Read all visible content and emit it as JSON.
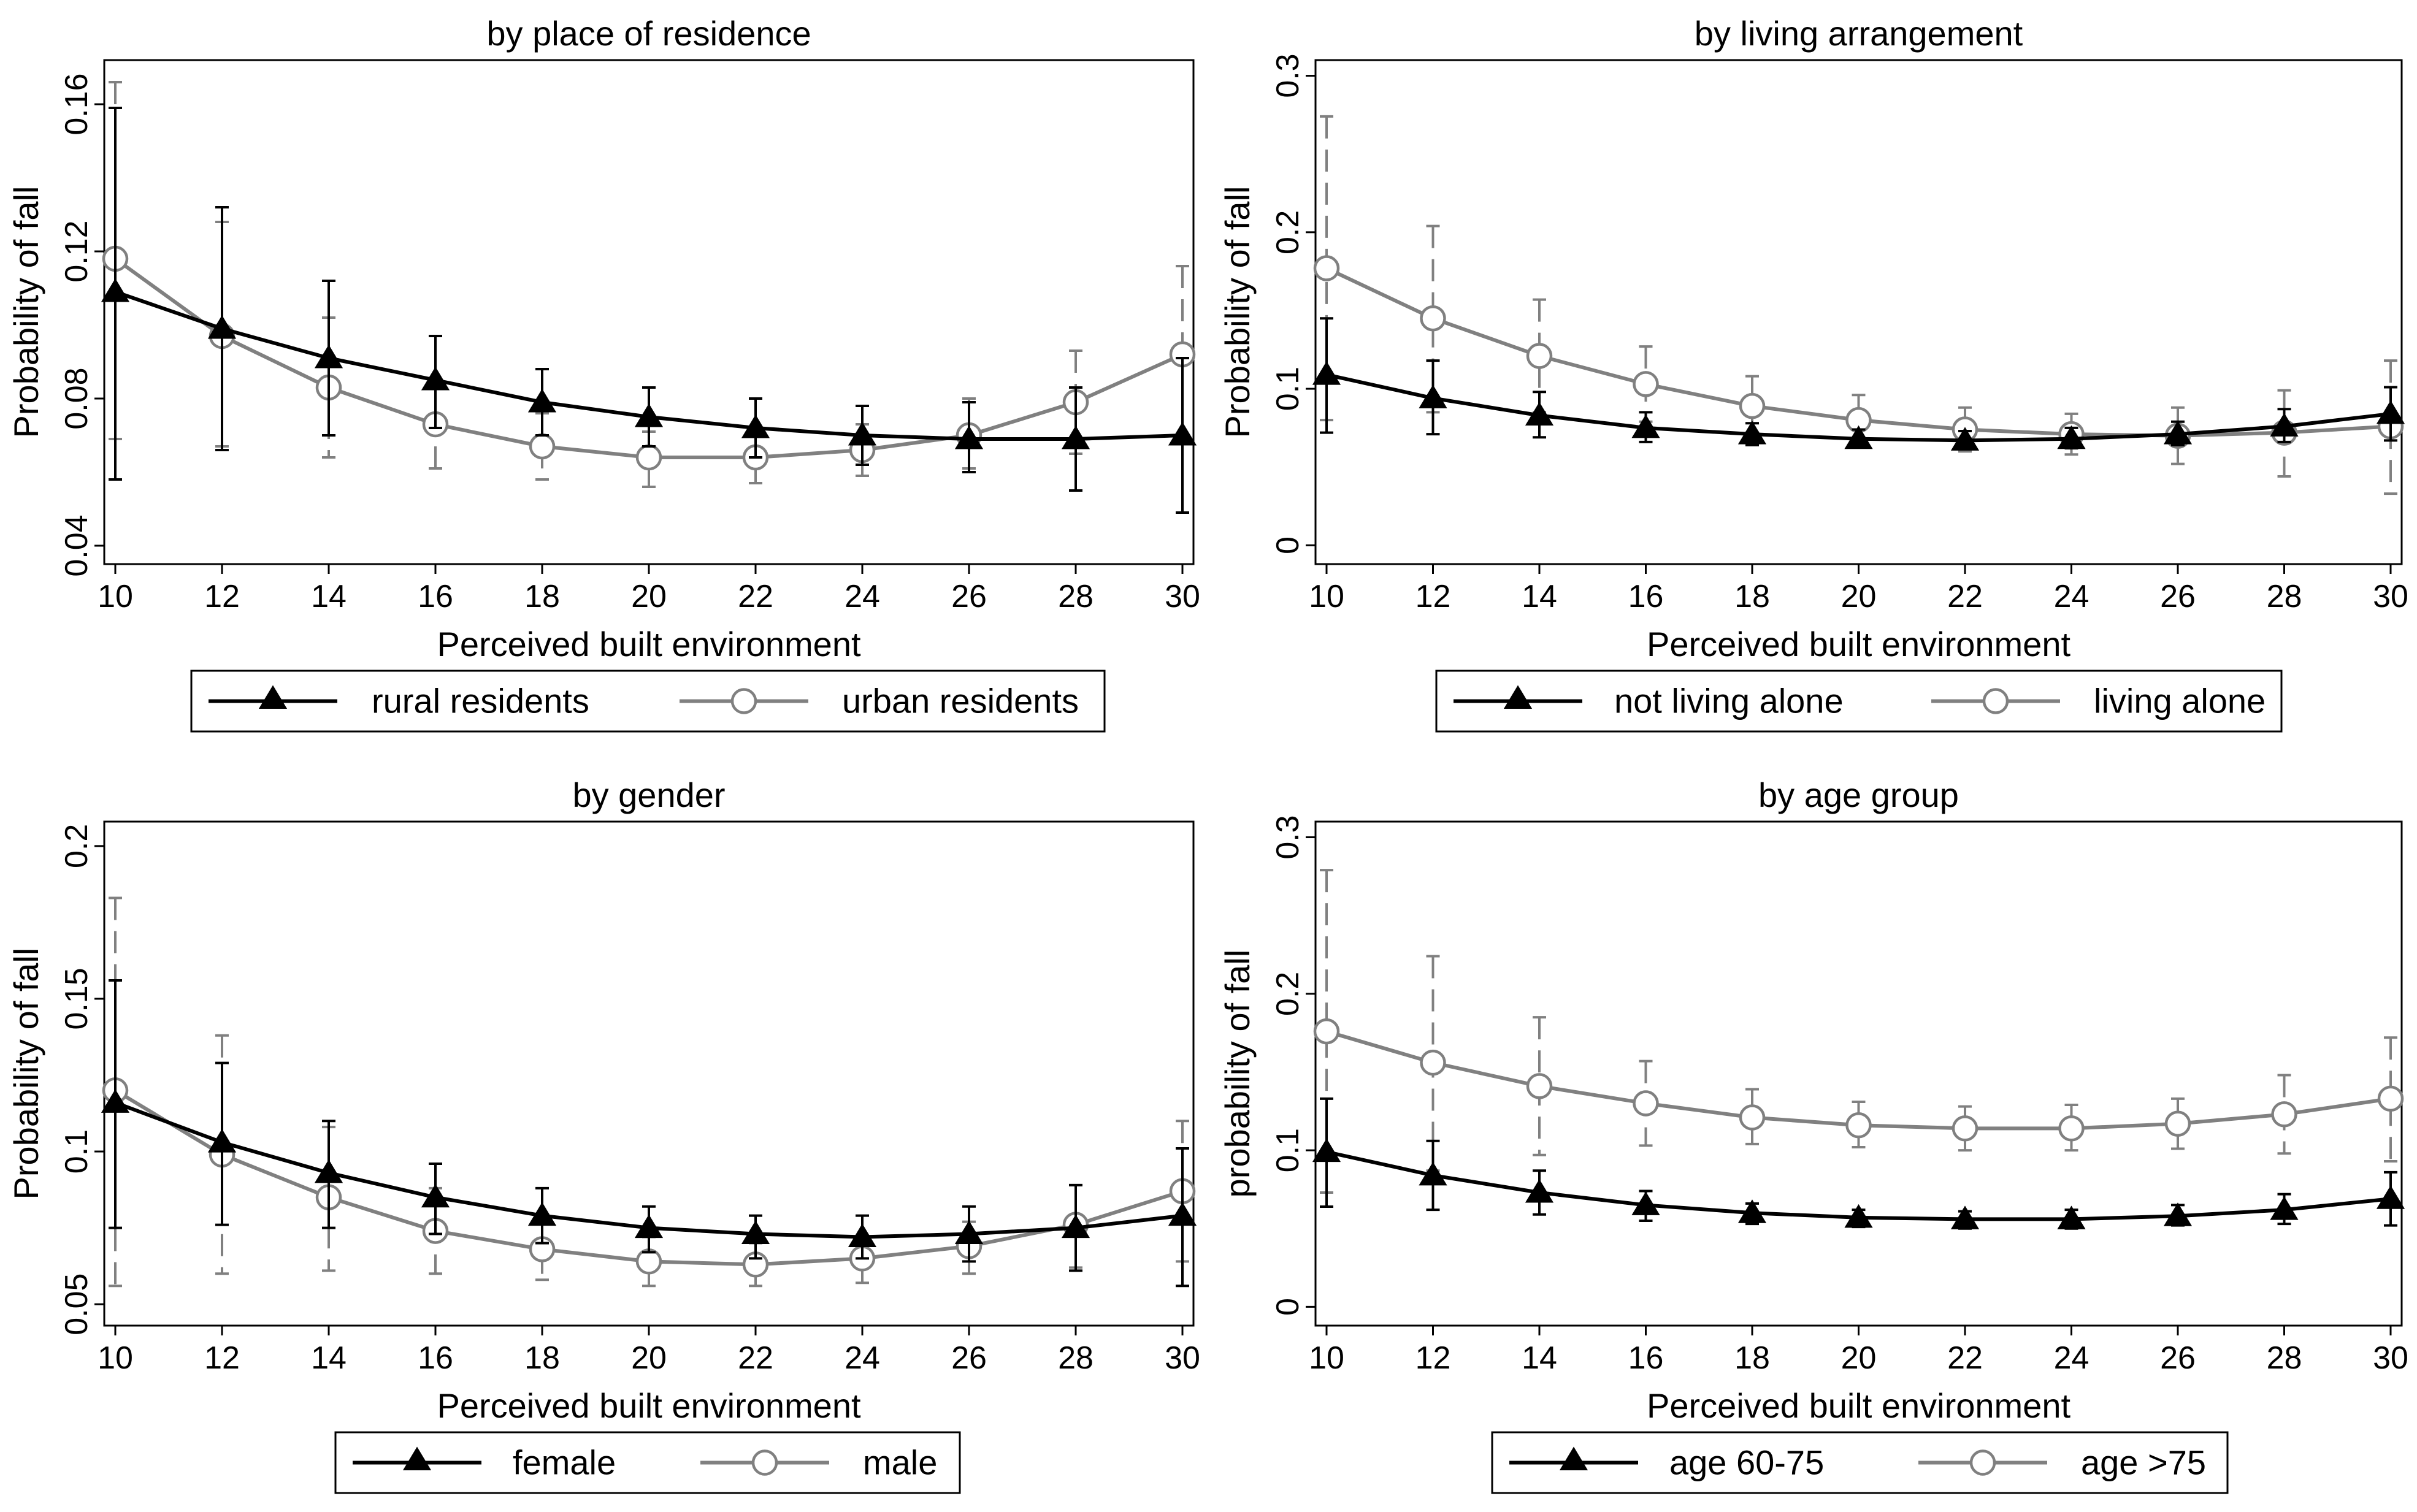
{
  "chart_data": [
    {
      "type": "line",
      "title": "by place of residence",
      "xlabel": "Perceived built environment",
      "ylabel": "Probability of fall",
      "xticks": [
        10,
        12,
        14,
        16,
        18,
        20,
        22,
        24,
        26,
        28,
        30
      ],
      "ylim": [
        0.035,
        0.172
      ],
      "yticks": [
        0.04,
        0.08,
        0.12,
        0.16
      ],
      "ytick_labels": [
        "0.04",
        "0.08",
        "0.12",
        "0.16"
      ],
      "series": [
        {
          "name": "rural residents",
          "color": "#000000",
          "marker": "triangle",
          "x": [
            10,
            12,
            14,
            16,
            18,
            20,
            22,
            24,
            26,
            28,
            30
          ],
          "values": [
            0.109,
            0.099,
            0.091,
            0.085,
            0.079,
            0.075,
            0.072,
            0.07,
            0.069,
            0.069,
            0.07
          ],
          "lower": [
            0.058,
            0.066,
            0.07,
            0.072,
            0.07,
            0.067,
            0.064,
            0.062,
            0.06,
            0.055,
            0.049
          ],
          "upper": [
            0.159,
            0.132,
            0.112,
            0.097,
            0.088,
            0.083,
            0.08,
            0.078,
            0.079,
            0.083,
            0.091
          ]
        },
        {
          "name": "urban residents",
          "color": "#808080",
          "marker": "circle",
          "x": [
            10,
            12,
            14,
            16,
            18,
            20,
            22,
            24,
            26,
            28,
            30
          ],
          "values": [
            0.118,
            0.097,
            0.083,
            0.073,
            0.067,
            0.064,
            0.064,
            0.066,
            0.07,
            0.079,
            0.092
          ],
          "lower": [
            0.069,
            0.067,
            0.064,
            0.061,
            0.058,
            0.056,
            0.057,
            0.059,
            0.061,
            0.065,
            0.068
          ],
          "upper": [
            0.166,
            0.128,
            0.102,
            0.085,
            0.076,
            0.071,
            0.07,
            0.073,
            0.08,
            0.093,
            0.116
          ]
        }
      ]
    },
    {
      "type": "line",
      "title": "by living arrangement",
      "xlabel": "Perceived built environment",
      "ylabel": "Probability of fall",
      "xticks": [
        10,
        12,
        14,
        16,
        18,
        20,
        22,
        24,
        26,
        28,
        30
      ],
      "ylim": [
        -0.012,
        0.31
      ],
      "yticks": [
        0,
        0.1,
        0.2,
        0.3
      ],
      "ytick_labels": [
        "0",
        "0.1",
        "0.2",
        "0.3"
      ],
      "series": [
        {
          "name": "not living alone",
          "color": "#000000",
          "marker": "triangle",
          "x": [
            10,
            12,
            14,
            16,
            18,
            20,
            22,
            24,
            26,
            28,
            30
          ],
          "values": [
            0.109,
            0.094,
            0.083,
            0.075,
            0.071,
            0.068,
            0.067,
            0.068,
            0.071,
            0.076,
            0.084
          ],
          "lower": [
            0.072,
            0.071,
            0.069,
            0.066,
            0.064,
            0.063,
            0.062,
            0.062,
            0.064,
            0.066,
            0.067
          ],
          "upper": [
            0.145,
            0.118,
            0.098,
            0.085,
            0.078,
            0.074,
            0.073,
            0.075,
            0.079,
            0.087,
            0.101
          ]
        },
        {
          "name": "living alone",
          "color": "#808080",
          "marker": "circle",
          "x": [
            10,
            12,
            14,
            16,
            18,
            20,
            22,
            24,
            26,
            28,
            30
          ],
          "values": [
            0.177,
            0.145,
            0.121,
            0.103,
            0.089,
            0.08,
            0.074,
            0.071,
            0.07,
            0.072,
            0.076
          ],
          "lower": [
            0.08,
            0.085,
            0.085,
            0.079,
            0.072,
            0.064,
            0.06,
            0.058,
            0.052,
            0.044,
            0.033
          ],
          "upper": [
            0.274,
            0.204,
            0.157,
            0.127,
            0.108,
            0.096,
            0.088,
            0.084,
            0.088,
            0.099,
            0.118
          ]
        }
      ]
    },
    {
      "type": "line",
      "title": "by gender",
      "xlabel": "Perceived built environment",
      "ylabel": "Probability of fall",
      "xticks": [
        10,
        12,
        14,
        16,
        18,
        20,
        22,
        24,
        26,
        28,
        30
      ],
      "ylim": [
        0.043,
        0.208
      ],
      "yticks": [
        0.05,
        0.1,
        0.15,
        0.2
      ],
      "ytick_labels": [
        "0.05",
        "0.1",
        "0.15",
        "0.2"
      ],
      "series": [
        {
          "name": "female",
          "color": "#000000",
          "marker": "triangle",
          "x": [
            10,
            12,
            14,
            16,
            18,
            20,
            22,
            24,
            26,
            28,
            30
          ],
          "values": [
            0.116,
            0.103,
            0.093,
            0.085,
            0.079,
            0.075,
            0.073,
            0.072,
            0.073,
            0.075,
            0.079
          ],
          "lower": [
            0.075,
            0.076,
            0.075,
            0.073,
            0.07,
            0.067,
            0.065,
            0.065,
            0.064,
            0.061,
            0.056
          ],
          "upper": [
            0.156,
            0.129,
            0.11,
            0.096,
            0.088,
            0.082,
            0.079,
            0.079,
            0.082,
            0.089,
            0.101
          ]
        },
        {
          "name": "male",
          "color": "#808080",
          "marker": "circle",
          "x": [
            10,
            12,
            14,
            16,
            18,
            20,
            22,
            24,
            26,
            28,
            30
          ],
          "values": [
            0.12,
            0.099,
            0.085,
            0.074,
            0.068,
            0.064,
            0.063,
            0.065,
            0.069,
            0.076,
            0.087
          ],
          "lower": [
            0.056,
            0.06,
            0.061,
            0.06,
            0.058,
            0.056,
            0.056,
            0.057,
            0.06,
            0.062,
            0.064
          ],
          "upper": [
            0.183,
            0.138,
            0.108,
            0.088,
            0.078,
            0.072,
            0.07,
            0.072,
            0.077,
            0.089,
            0.11
          ]
        }
      ]
    },
    {
      "type": "line",
      "title": "by age group",
      "xlabel": "Perceived built environment",
      "ylabel": "probability of fall",
      "xticks": [
        10,
        12,
        14,
        16,
        18,
        20,
        22,
        24,
        26,
        28,
        30
      ],
      "ylim": [
        -0.012,
        0.31
      ],
      "yticks": [
        0,
        0.1,
        0.2,
        0.3
      ],
      "ytick_labels": [
        "0",
        "0.1",
        "0.2",
        "0.3"
      ],
      "series": [
        {
          "name": "age 60-75",
          "color": "#000000",
          "marker": "triangle",
          "x": [
            10,
            12,
            14,
            16,
            18,
            20,
            22,
            24,
            26,
            28,
            30
          ],
          "values": [
            0.099,
            0.084,
            0.073,
            0.065,
            0.06,
            0.057,
            0.056,
            0.056,
            0.058,
            0.062,
            0.069
          ],
          "lower": [
            0.064,
            0.062,
            0.059,
            0.055,
            0.053,
            0.051,
            0.05,
            0.05,
            0.052,
            0.053,
            0.052
          ],
          "upper": [
            0.133,
            0.106,
            0.087,
            0.074,
            0.066,
            0.062,
            0.061,
            0.062,
            0.065,
            0.072,
            0.086
          ]
        },
        {
          "name": "age >75",
          "color": "#808080",
          "marker": "circle",
          "x": [
            10,
            12,
            14,
            16,
            18,
            20,
            22,
            24,
            26,
            28,
            30
          ],
          "values": [
            0.176,
            0.156,
            0.141,
            0.13,
            0.121,
            0.116,
            0.114,
            0.114,
            0.117,
            0.123,
            0.133
          ],
          "lower": [
            0.073,
            0.087,
            0.097,
            0.103,
            0.104,
            0.102,
            0.1,
            0.1,
            0.101,
            0.098,
            0.093
          ],
          "upper": [
            0.279,
            0.224,
            0.185,
            0.157,
            0.139,
            0.131,
            0.128,
            0.129,
            0.133,
            0.148,
            0.172
          ]
        }
      ]
    }
  ]
}
